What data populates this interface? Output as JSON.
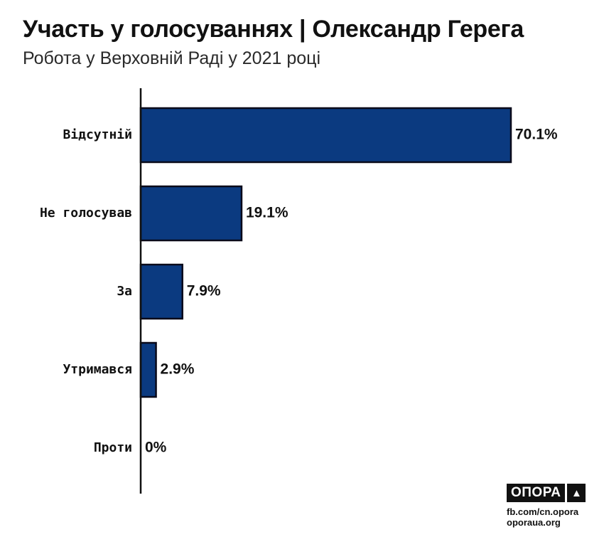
{
  "title": "Участь у голосуваннях | Олександр Герега",
  "subtitle": "Робота у Верховній Раді у 2021 році",
  "chart_data": {
    "type": "bar",
    "orientation": "horizontal",
    "categories": [
      "Відсутній",
      "Не голосував",
      "За",
      "Утримався",
      "Проти"
    ],
    "values": [
      70.1,
      19.1,
      7.9,
      2.9,
      0
    ],
    "value_labels": [
      "70.1%",
      "19.1%",
      "7.9%",
      "2.9%",
      "0%"
    ],
    "xlim": [
      0,
      70.1
    ],
    "grid": false,
    "bar_color": "#0b3a80",
    "bar_stroke": "#0a0a1a"
  },
  "branding": {
    "logo_text": "ОПОРА",
    "logo_icon": "triangle-icon",
    "links": [
      "fb.com/cn.opora",
      "oporaua.org"
    ]
  }
}
